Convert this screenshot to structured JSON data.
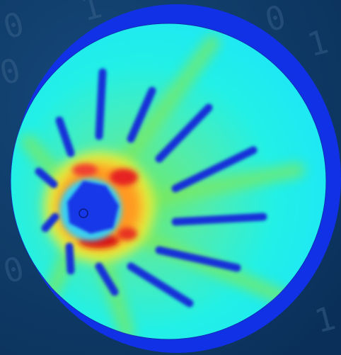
{
  "background_digits": [
    "0",
    "1",
    "0",
    "1",
    "0",
    "1",
    "0",
    "1"
  ]
}
